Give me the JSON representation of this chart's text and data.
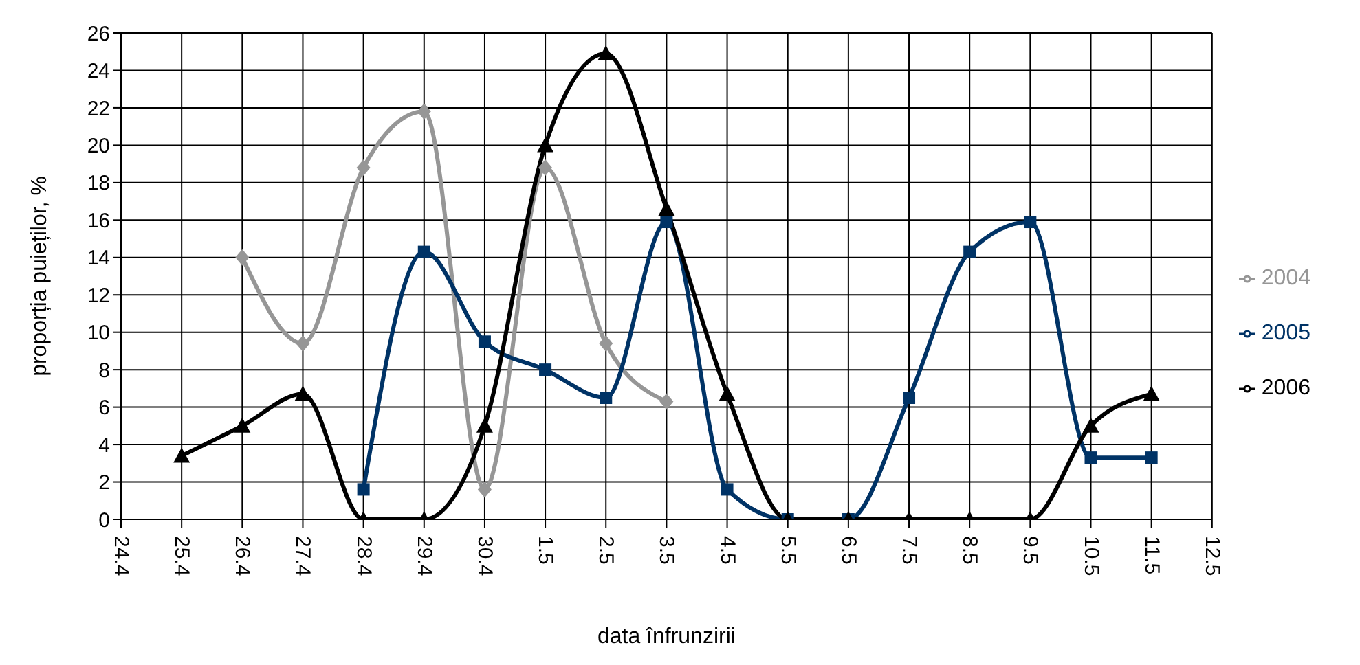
{
  "chart_data": {
    "type": "line",
    "xlabel": "data înfrunzirii",
    "ylabel": "proporția puieților, %",
    "categories": [
      "24.4",
      "25.4",
      "26.4",
      "27.4",
      "28.4",
      "29.4",
      "30.4",
      "1.5",
      "2.5",
      "3.5",
      "4.5",
      "5.5",
      "6.5",
      "7.5",
      "8.5",
      "9.5",
      "10.5",
      "11.5",
      "12.5"
    ],
    "series": [
      {
        "name": "2004",
        "color": "#969696",
        "marker": "diamond",
        "values": [
          null,
          null,
          14,
          9.4,
          18.8,
          21.8,
          1.6,
          18.8,
          9.4,
          6.3,
          null,
          null,
          null,
          null,
          null,
          null,
          null,
          null,
          null
        ]
      },
      {
        "name": "2005",
        "color": "#003366",
        "marker": "square",
        "values": [
          null,
          null,
          null,
          null,
          1.6,
          14.3,
          9.5,
          8,
          6.5,
          15.9,
          1.6,
          0,
          0,
          6.5,
          14.3,
          15.9,
          3.3,
          3.3,
          null
        ]
      },
      {
        "name": "2006",
        "color": "#000000",
        "marker": "triangle",
        "values": [
          null,
          3.4,
          5,
          6.7,
          0,
          0,
          5,
          20,
          24.9,
          16.6,
          6.7,
          0,
          0,
          0,
          0,
          0,
          5,
          6.7,
          null
        ]
      }
    ],
    "ylim": [
      0,
      26
    ],
    "yticks": [
      0,
      2,
      4,
      6,
      8,
      10,
      12,
      14,
      16,
      18,
      20,
      22,
      24,
      26
    ],
    "grid": true,
    "legend": "right"
  }
}
